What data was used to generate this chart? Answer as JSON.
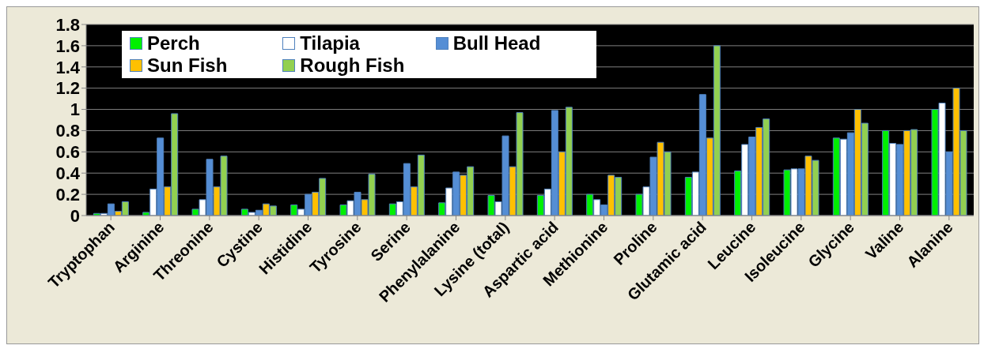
{
  "chart_data": {
    "type": "bar",
    "categories": [
      "Tryptophan",
      "Arginine",
      "Threonine",
      "Cystine",
      "Histidine",
      "Tyrosine",
      "Serine",
      "Phenylalanine",
      "Lysine (total)",
      "Aspartic acid",
      "Methionine",
      "Proline",
      "Glutamic acid",
      "Leucine",
      "Isoleucine",
      "Glycine",
      "Valine",
      "Alanine"
    ],
    "series": [
      {
        "name": "Perch",
        "color": "#00f000",
        "values": [
          0.02,
          0.03,
          0.06,
          0.06,
          0.1,
          0.1,
          0.11,
          0.12,
          0.19,
          0.19,
          0.2,
          0.2,
          0.36,
          0.42,
          0.43,
          0.73,
          0.8,
          1.0
        ]
      },
      {
        "name": "Tilapia",
        "color": "#ffffff",
        "values": [
          0.02,
          0.25,
          0.15,
          0.03,
          0.06,
          0.14,
          0.13,
          0.26,
          0.13,
          0.25,
          0.15,
          0.27,
          0.41,
          0.67,
          0.44,
          0.72,
          0.68,
          1.06
        ]
      },
      {
        "name": "Bull Head",
        "color": "#558ed5",
        "values": [
          0.11,
          0.73,
          0.53,
          0.05,
          0.2,
          0.22,
          0.49,
          0.41,
          0.75,
          0.99,
          0.1,
          0.55,
          1.14,
          0.74,
          0.44,
          0.78,
          0.67,
          0.6
        ]
      },
      {
        "name": "Sun Fish",
        "color": "#ffc000",
        "values": [
          0.04,
          0.27,
          0.27,
          0.11,
          0.22,
          0.15,
          0.27,
          0.38,
          0.46,
          0.6,
          0.38,
          0.69,
          0.73,
          0.83,
          0.56,
          1.0,
          0.8,
          1.2
        ]
      },
      {
        "name": "Rough Fish",
        "color": "#92d050",
        "values": [
          0.13,
          0.96,
          0.56,
          0.09,
          0.35,
          0.39,
          0.57,
          0.46,
          0.97,
          1.02,
          0.36,
          0.6,
          1.6,
          0.91,
          0.52,
          0.87,
          0.81,
          0.8
        ]
      }
    ],
    "ylim": [
      0,
      1.8
    ],
    "yticks": [
      0,
      0.2,
      0.4,
      0.6,
      0.8,
      1,
      1.2,
      1.4,
      1.6,
      1.8
    ],
    "grid": "y",
    "legend": "top left"
  }
}
